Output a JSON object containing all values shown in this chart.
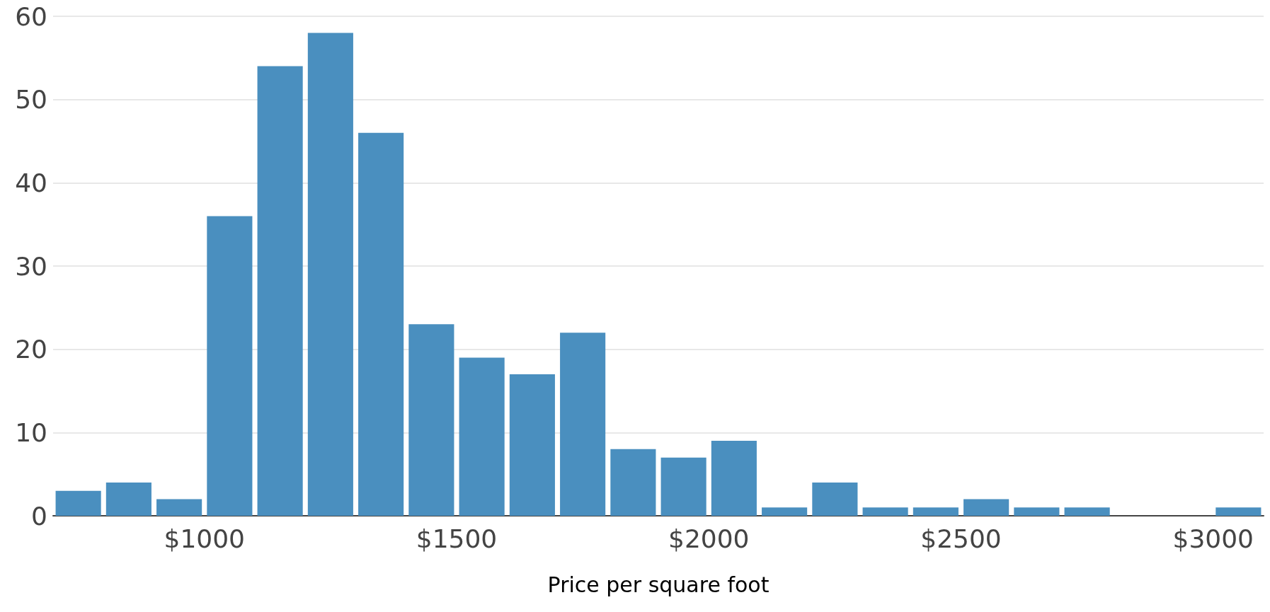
{
  "chart_data": {
    "type": "histogram",
    "xlabel": "Price per square foot",
    "color": "#4a8fbf",
    "bins": [
      700,
      800,
      900,
      1000,
      1100,
      1200,
      1300,
      1400,
      1500,
      1600,
      1700,
      1800,
      1900,
      2000,
      2100,
      2200,
      2300,
      2400,
      2500,
      2600,
      2700,
      2800,
      2900,
      3000,
      3100
    ],
    "values": [
      3,
      4,
      2,
      36,
      54,
      58,
      46,
      23,
      19,
      17,
      22,
      8,
      7,
      9,
      1,
      4,
      1,
      1,
      2,
      1,
      1,
      0,
      0,
      1
    ],
    "xlim": [
      700,
      3100
    ],
    "xticks": [
      {
        "value": 1000,
        "label": "$1000"
      },
      {
        "value": 1500,
        "label": "$1500"
      },
      {
        "value": 2000,
        "label": "$2000"
      },
      {
        "value": 2500,
        "label": "$2500"
      },
      {
        "value": 3000,
        "label": "$3000"
      }
    ],
    "ylim": [
      0,
      60
    ],
    "yticks": [
      0,
      10,
      20,
      30,
      40,
      50,
      60
    ],
    "grid": "y"
  }
}
